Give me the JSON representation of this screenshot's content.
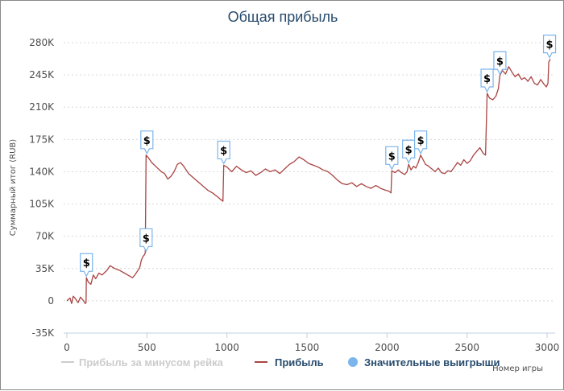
{
  "chart_data": {
    "type": "line",
    "title": "Общая прибыль",
    "xlabel": "Номер игры",
    "ylabel": "Суммарный итог (RUB)",
    "xlim": [
      -20,
      3050
    ],
    "ylim": [
      -35000,
      280000
    ],
    "x_ticks": [
      0,
      500,
      1000,
      1500,
      2000,
      2500,
      3000
    ],
    "y_ticks": [
      -35000,
      0,
      35000,
      70000,
      105000,
      140000,
      175000,
      210000,
      245000,
      280000
    ],
    "x_tick_labels": [
      "0",
      "500",
      "1000",
      "1500",
      "2000",
      "2500",
      "3000"
    ],
    "y_tick_labels": [
      "-35K",
      "0",
      "35K",
      "70K",
      "105K",
      "140K",
      "175K",
      "210K",
      "245K",
      "280K"
    ],
    "grid": {
      "horizontal": "dashed",
      "vertical": false
    },
    "legend_position": "bottom",
    "legend": [
      {
        "name": "Прибыль за минусом рейка",
        "color": "#cccccc",
        "marker": "line",
        "hidden": true
      },
      {
        "name": "Прибыль",
        "color": "#a94442",
        "marker": "line",
        "hidden": false
      },
      {
        "name": "Значительные выигрыши",
        "color": "#7cb5ec",
        "marker": "circle",
        "hidden": false
      }
    ],
    "series": [
      {
        "name": "Прибыль",
        "color": "#a94442",
        "points": [
          [
            0,
            0
          ],
          [
            20,
            3000
          ],
          [
            30,
            -3000
          ],
          [
            40,
            5000
          ],
          [
            55,
            2000
          ],
          [
            70,
            -2000
          ],
          [
            85,
            4000
          ],
          [
            100,
            1000
          ],
          [
            115,
            -3000
          ],
          [
            120,
            -2000
          ],
          [
            122,
            25000
          ],
          [
            135,
            20000
          ],
          [
            150,
            18000
          ],
          [
            165,
            28000
          ],
          [
            180,
            24000
          ],
          [
            200,
            30000
          ],
          [
            220,
            28000
          ],
          [
            250,
            33000
          ],
          [
            270,
            38000
          ],
          [
            300,
            35000
          ],
          [
            330,
            33000
          ],
          [
            360,
            30000
          ],
          [
            390,
            27000
          ],
          [
            410,
            25000
          ],
          [
            425,
            28000
          ],
          [
            440,
            32000
          ],
          [
            455,
            36000
          ],
          [
            465,
            44000
          ],
          [
            475,
            48000
          ],
          [
            485,
            50000
          ],
          [
            490,
            52000
          ],
          [
            495,
            158000
          ],
          [
            510,
            155000
          ],
          [
            530,
            150000
          ],
          [
            560,
            145000
          ],
          [
            590,
            140000
          ],
          [
            610,
            138000
          ],
          [
            630,
            132000
          ],
          [
            650,
            135000
          ],
          [
            670,
            140000
          ],
          [
            690,
            148000
          ],
          [
            710,
            150000
          ],
          [
            730,
            146000
          ],
          [
            760,
            138000
          ],
          [
            800,
            132000
          ],
          [
            840,
            126000
          ],
          [
            880,
            120000
          ],
          [
            910,
            117000
          ],
          [
            940,
            113000
          ],
          [
            960,
            110000
          ],
          [
            975,
            108000
          ],
          [
            980,
            147000
          ],
          [
            1000,
            145000
          ],
          [
            1030,
            140000
          ],
          [
            1060,
            146000
          ],
          [
            1090,
            142000
          ],
          [
            1120,
            139000
          ],
          [
            1150,
            141000
          ],
          [
            1180,
            136000
          ],
          [
            1210,
            139000
          ],
          [
            1240,
            143000
          ],
          [
            1270,
            140000
          ],
          [
            1300,
            142000
          ],
          [
            1330,
            138000
          ],
          [
            1360,
            143000
          ],
          [
            1390,
            148000
          ],
          [
            1420,
            151000
          ],
          [
            1450,
            156000
          ],
          [
            1480,
            153000
          ],
          [
            1510,
            149000
          ],
          [
            1540,
            147000
          ],
          [
            1570,
            145000
          ],
          [
            1600,
            142000
          ],
          [
            1630,
            140000
          ],
          [
            1660,
            136000
          ],
          [
            1690,
            131000
          ],
          [
            1720,
            127000
          ],
          [
            1750,
            126000
          ],
          [
            1780,
            128000
          ],
          [
            1810,
            124000
          ],
          [
            1840,
            127000
          ],
          [
            1870,
            124000
          ],
          [
            1900,
            122000
          ],
          [
            1930,
            125000
          ],
          [
            1960,
            122000
          ],
          [
            1990,
            120000
          ],
          [
            2010,
            119000
          ],
          [
            2025,
            117000
          ],
          [
            2030,
            141000
          ],
          [
            2050,
            139000
          ],
          [
            2070,
            142000
          ],
          [
            2090,
            139000
          ],
          [
            2110,
            137000
          ],
          [
            2125,
            140000
          ],
          [
            2135,
            148000
          ],
          [
            2150,
            142000
          ],
          [
            2165,
            146000
          ],
          [
            2180,
            144000
          ],
          [
            2195,
            150000
          ],
          [
            2210,
            158000
          ],
          [
            2225,
            153000
          ],
          [
            2240,
            148000
          ],
          [
            2260,
            146000
          ],
          [
            2280,
            143000
          ],
          [
            2300,
            140000
          ],
          [
            2320,
            144000
          ],
          [
            2340,
            139000
          ],
          [
            2360,
            138000
          ],
          [
            2380,
            141000
          ],
          [
            2400,
            140000
          ],
          [
            2420,
            145000
          ],
          [
            2440,
            150000
          ],
          [
            2460,
            147000
          ],
          [
            2480,
            153000
          ],
          [
            2500,
            149000
          ],
          [
            2520,
            152000
          ],
          [
            2540,
            158000
          ],
          [
            2560,
            162000
          ],
          [
            2580,
            166000
          ],
          [
            2600,
            160000
          ],
          [
            2615,
            158000
          ],
          [
            2625,
            225000
          ],
          [
            2640,
            220000
          ],
          [
            2660,
            218000
          ],
          [
            2680,
            222000
          ],
          [
            2695,
            230000
          ],
          [
            2705,
            244000
          ],
          [
            2720,
            250000
          ],
          [
            2740,
            246000
          ],
          [
            2760,
            254000
          ],
          [
            2780,
            248000
          ],
          [
            2800,
            243000
          ],
          [
            2820,
            246000
          ],
          [
            2840,
            240000
          ],
          [
            2860,
            242000
          ],
          [
            2880,
            238000
          ],
          [
            2900,
            243000
          ],
          [
            2920,
            236000
          ],
          [
            2940,
            234000
          ],
          [
            2960,
            240000
          ],
          [
            2980,
            235000
          ],
          [
            2995,
            232000
          ],
          [
            3005,
            236000
          ],
          [
            3010,
            259000
          ],
          [
            3020,
            262000
          ]
        ]
      }
    ],
    "significant_wins": [
      {
        "x": 122,
        "y": 25000,
        "label": "$"
      },
      {
        "x": 495,
        "y": 52000,
        "label": "$"
      },
      {
        "x": 500,
        "y": 158000,
        "label": "$"
      },
      {
        "x": 980,
        "y": 147000,
        "label": "$"
      },
      {
        "x": 2030,
        "y": 141000,
        "label": "$"
      },
      {
        "x": 2135,
        "y": 148000,
        "label": "$"
      },
      {
        "x": 2210,
        "y": 158000,
        "label": "$"
      },
      {
        "x": 2625,
        "y": 225000,
        "label": "$"
      },
      {
        "x": 2705,
        "y": 244000,
        "label": "$"
      },
      {
        "x": 3015,
        "y": 262000,
        "label": "$"
      }
    ]
  }
}
